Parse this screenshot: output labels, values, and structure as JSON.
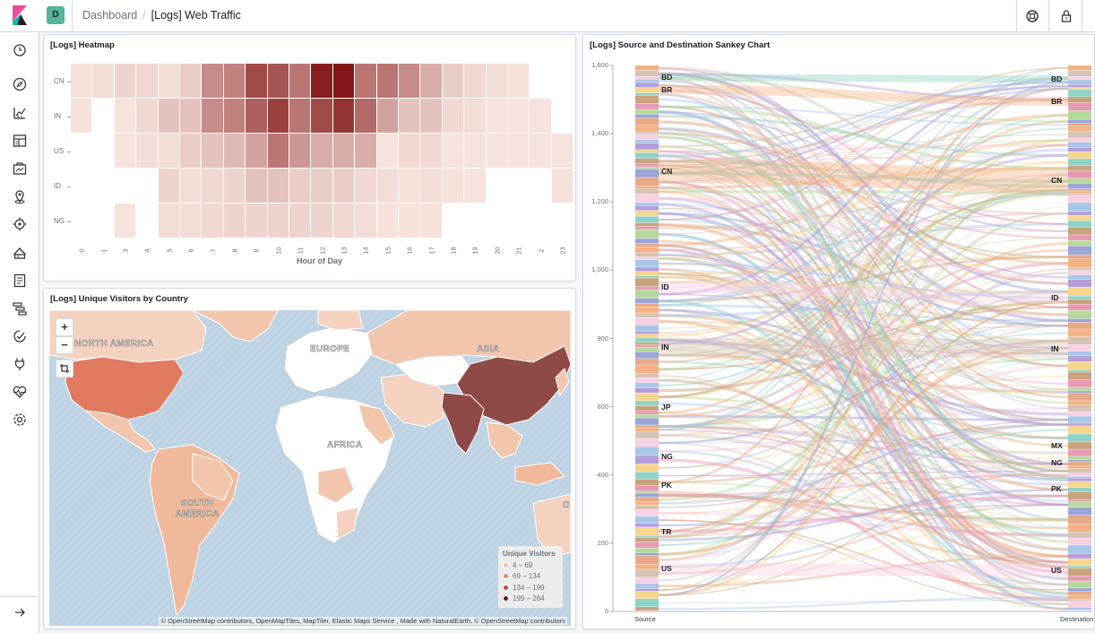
{
  "colors": {
    "accent": "#006bb8",
    "space_badge": "#54b399"
  },
  "header": {
    "space_initial": "D",
    "breadcrumbs": [
      "Dashboard",
      "[Logs] Web Traffic"
    ],
    "icons": [
      "kibana-logo-icon",
      "help-icon",
      "lock-icon"
    ]
  },
  "sidenav": {
    "items": [
      "clock-icon",
      "compass-icon",
      "visualize-icon",
      "dashboard-icon",
      "canvas-icon",
      "maps-icon",
      "ml-icon",
      "infrastructure-icon",
      "logs-icon",
      "apm-icon",
      "uptime-icon",
      "dev-tools-icon",
      "monitoring-icon",
      "management-icon"
    ],
    "collapse_icon": "arrow-right-icon"
  },
  "heatmap_panel": {
    "title": "[Logs] Heatmap",
    "chart_data": {
      "type": "heatmap",
      "x_label": "Hour of Day",
      "y_categories": [
        "CN",
        "IN",
        "US",
        "ID",
        "NG"
      ],
      "x_categories": [
        "0",
        "1",
        "3",
        "4",
        "5",
        "6",
        "7",
        "8",
        "9",
        "10",
        "11",
        "12",
        "13",
        "14",
        "15",
        "16",
        "17",
        "18",
        "19",
        "20",
        "21",
        "2",
        "23"
      ],
      "values": [
        [
          0.06,
          0.08,
          0.12,
          0.1,
          0.08,
          0.15,
          0.45,
          0.5,
          0.75,
          0.7,
          0.55,
          0.95,
          0.98,
          0.55,
          0.55,
          0.45,
          0.3,
          0.15,
          0.1,
          0.08,
          0.06,
          null,
          null
        ],
        [
          0.06,
          null,
          0.05,
          0.1,
          0.2,
          0.2,
          0.45,
          0.5,
          0.65,
          0.8,
          0.55,
          0.75,
          0.85,
          0.6,
          0.35,
          0.2,
          0.2,
          0.1,
          0.08,
          0.05,
          0.05,
          0.05,
          null
        ],
        [
          null,
          null,
          0.05,
          0.08,
          0.08,
          0.15,
          0.2,
          0.25,
          0.35,
          0.55,
          0.4,
          0.3,
          0.3,
          0.3,
          0.05,
          0.1,
          0.1,
          0.05,
          0.05,
          0.05,
          0.05,
          0.05,
          0.05
        ],
        [
          null,
          null,
          null,
          null,
          0.12,
          0.08,
          0.1,
          0.12,
          0.2,
          0.2,
          0.15,
          0.15,
          0.15,
          0.1,
          0.08,
          0.06,
          0.08,
          0.06,
          0.05,
          null,
          null,
          null,
          0.06
        ],
        [
          null,
          null,
          0.05,
          null,
          0.08,
          0.08,
          0.1,
          0.12,
          0.12,
          0.12,
          0.12,
          0.12,
          0.1,
          0.08,
          0.06,
          0.06,
          0.06,
          null,
          null,
          null,
          null,
          null,
          null
        ]
      ]
    }
  },
  "map_panel": {
    "title": "[Logs] Unique Visitors by Country",
    "controls": {
      "zoom_in": "+",
      "zoom_out": "−"
    },
    "labels": [
      "NORTH AMERICA",
      "EUROPE",
      "ASIA",
      "AFRICA",
      "SOUTH AMERICA",
      "O"
    ],
    "legend": {
      "title": "Unique Visitors",
      "items": [
        {
          "label": "4 – 69",
          "color": "#f5c4a8"
        },
        {
          "label": "69 – 134",
          "color": "#e88466"
        },
        {
          "label": "134 – 199",
          "color": "#c94535"
        },
        {
          "label": "199 – 264",
          "color": "#6a1a1a"
        }
      ]
    },
    "attribution": "© OpenStreetMap contributors, OpenMapTiles, MapTiler, Elastic Maps Service , Made with NaturalEarth, © OpenStreetMap contributors"
  },
  "sankey_panel": {
    "title": "[Logs] Source and Destination Sankey Chart",
    "chart_data": {
      "type": "sankey",
      "y_ticks": [
        "0",
        "200",
        "400",
        "600",
        "800",
        "1,000",
        "1,200",
        "1,400",
        "1,600"
      ],
      "ylim": [
        0,
        1600
      ],
      "x_labels": [
        "Source",
        "Destination"
      ],
      "source_nodes": [
        {
          "name": "BD",
          "value": 1565
        },
        {
          "name": "BR",
          "value": 1530
        },
        {
          "name": "CN",
          "value": 1290
        },
        {
          "name": "ID",
          "value": 950
        },
        {
          "name": "IN",
          "value": 775
        },
        {
          "name": "JP",
          "value": 600
        },
        {
          "name": "NG",
          "value": 455
        },
        {
          "name": "PK",
          "value": 370
        },
        {
          "name": "TR",
          "value": 235
        },
        {
          "name": "US",
          "value": 125
        }
      ],
      "destination_nodes": [
        {
          "name": "BD",
          "value": 1560
        },
        {
          "name": "BR",
          "value": 1495
        },
        {
          "name": "CN",
          "value": 1265
        },
        {
          "name": "ID",
          "value": 920
        },
        {
          "name": "IN",
          "value": 770
        },
        {
          "name": "MX",
          "value": 485
        },
        {
          "name": "NG",
          "value": 435
        },
        {
          "name": "PK",
          "value": 360
        },
        {
          "name": "US",
          "value": 120
        }
      ]
    }
  }
}
